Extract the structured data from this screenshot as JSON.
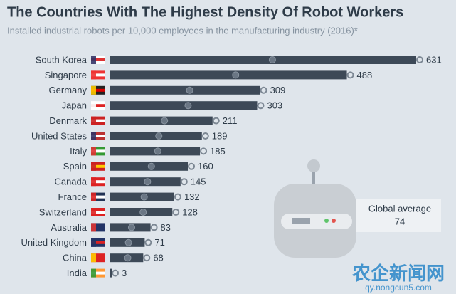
{
  "chart_data": {
    "type": "bar",
    "orientation": "horizontal",
    "title": "The Countries With The Highest Density Of Robot Workers",
    "subtitle": "Installed industrial robots per 10,000 employees in the manufacturing industry (2016)*",
    "categories": [
      "South Korea",
      "Singapore",
      "Germany",
      "Japan",
      "Denmark",
      "United States",
      "Italy",
      "Spain",
      "Canada",
      "France",
      "Switzerland",
      "Australia",
      "United Kingdom",
      "China",
      "India"
    ],
    "values": [
      631,
      488,
      309,
      303,
      211,
      189,
      185,
      160,
      145,
      132,
      128,
      83,
      71,
      68,
      3
    ],
    "color": "#3d4957",
    "annotation": {
      "label": "Global average",
      "value": 74
    },
    "watermark": {
      "title": "农企新闻网",
      "url": "qy.nongcun5.com"
    }
  }
}
